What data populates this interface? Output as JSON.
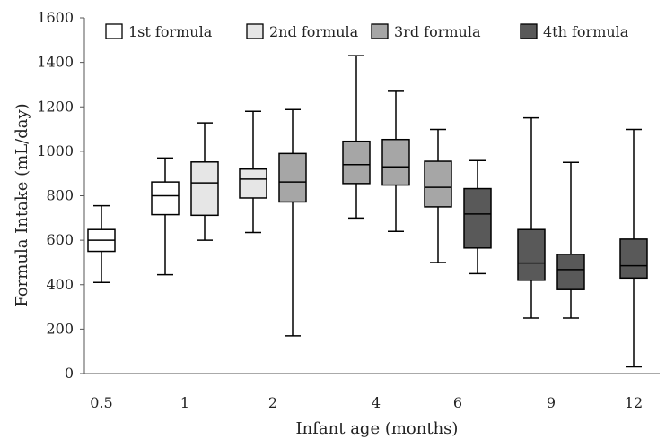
{
  "chart_data": {
    "type": "boxplot",
    "xlabel": "Infant age (months)",
    "ylabel": "Formula Intake (mL/day)",
    "ylim": [
      0,
      1600
    ],
    "yticks": [
      0,
      200,
      400,
      600,
      800,
      1000,
      1200,
      1400,
      1600
    ],
    "categories": [
      "0.5",
      "1",
      "2",
      "4",
      "6",
      "9",
      "12"
    ],
    "grid": false,
    "legend_position": "top",
    "series": [
      {
        "name": "1st formula",
        "color": "#ffffff"
      },
      {
        "name": "2nd formula",
        "color": "#e6e6e6"
      },
      {
        "name": "3rd formula",
        "color": "#a6a6a6"
      },
      {
        "name": "4th formula",
        "color": "#595959"
      }
    ],
    "boxes": [
      {
        "category": "0.5",
        "series": "1st formula",
        "min": 410,
        "q1": 550,
        "median": 600,
        "q3": 648,
        "max": 755
      },
      {
        "category": "1",
        "series": "1st formula",
        "min": 445,
        "q1": 715,
        "median": 800,
        "q3": 862,
        "max": 970
      },
      {
        "category": "1",
        "series": "2nd formula",
        "min": 600,
        "q1": 712,
        "median": 858,
        "q3": 952,
        "max": 1128
      },
      {
        "category": "2",
        "series": "2nd formula",
        "min": 635,
        "q1": 790,
        "median": 875,
        "q3": 920,
        "max": 1180
      },
      {
        "category": "2",
        "series": "3rd formula",
        "min": 170,
        "q1": 772,
        "median": 862,
        "q3": 990,
        "max": 1188
      },
      {
        "category": "4",
        "series": "3rd formula",
        "min": 700,
        "q1": 855,
        "median": 940,
        "q3": 1045,
        "max": 1430
      },
      {
        "category": "4",
        "series": "3rd formula",
        "min": 640,
        "q1": 848,
        "median": 930,
        "q3": 1053,
        "max": 1270
      },
      {
        "category": "6",
        "series": "3rd formula",
        "min": 500,
        "q1": 750,
        "median": 838,
        "q3": 955,
        "max": 1098
      },
      {
        "category": "6",
        "series": "4th formula",
        "min": 450,
        "q1": 565,
        "median": 718,
        "q3": 832,
        "max": 958
      },
      {
        "category": "9",
        "series": "4th formula",
        "min": 250,
        "q1": 420,
        "median": 497,
        "q3": 648,
        "max": 1150
      },
      {
        "category": "9",
        "series": "4th formula",
        "min": 250,
        "q1": 378,
        "median": 468,
        "q3": 537,
        "max": 950
      },
      {
        "category": "12",
        "series": "4th formula",
        "min": 30,
        "q1": 430,
        "median": 485,
        "q3": 605,
        "max": 1098
      }
    ]
  }
}
